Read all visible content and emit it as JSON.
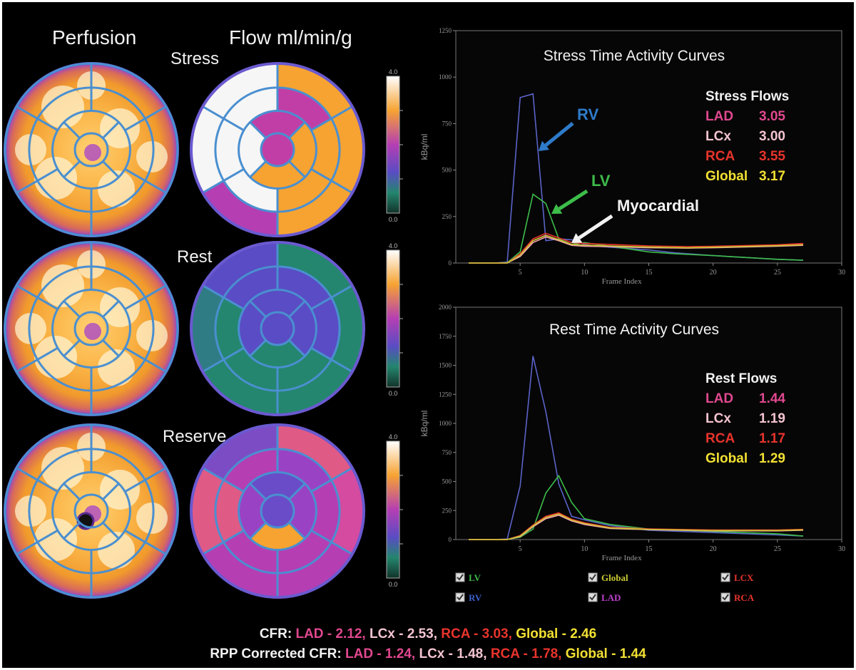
{
  "headers": {
    "perfusion": "Perfusion",
    "flow": "Flow ml/min/g"
  },
  "rows": [
    {
      "label": "Stress",
      "perfusion_defect": false,
      "scale": {
        "max": "4.0",
        "min": "0.0"
      },
      "flow_segments": {
        "ring1": [
          "#f6a332",
          "#f6a332",
          "#f6a332",
          "#b53eb3",
          "#f6f6f6",
          "#f6f6f6"
        ],
        "ring2": [
          "#c13ea6",
          "#f6a332",
          "#f6a332",
          "#f6f6f6",
          "#f6f6f6",
          "#f6f6f6"
        ],
        "ring3": [
          "#c13ea6",
          "#f6a332",
          "#f6a332",
          "#f6f6f6"
        ],
        "apex": "#c13ea6"
      }
    },
    {
      "label": "Rest",
      "perfusion_defect": false,
      "scale": {
        "max": "4.0",
        "min": "0.0"
      },
      "flow_segments": {
        "ring1": [
          "#24866e",
          "#24866e",
          "#24866e",
          "#24866e",
          "#2f7c84",
          "#5a4cc4"
        ],
        "ring2": [
          "#5a4cc4",
          "#5a4cc4",
          "#24866e",
          "#24866e",
          "#24866e",
          "#5a4cc4"
        ],
        "ring3": [
          "#5a4cc4",
          "#5a4cc4",
          "#24866e",
          "#5a4cc4"
        ],
        "apex": "#5a4cc4"
      }
    },
    {
      "label": "Reserve",
      "perfusion_defect": true,
      "scale": {
        "max": "4.0",
        "min": "0.0"
      },
      "flow_segments": {
        "ring1": [
          "#e05a86",
          "#d44ba0",
          "#b53eb3",
          "#b53eb3",
          "#e05a86",
          "#7c4cc4"
        ],
        "ring2": [
          "#9a42c4",
          "#b53eb3",
          "#b53eb3",
          "#b53eb3",
          "#e05a86",
          "#b53eb3"
        ],
        "ring3": [
          "#6a4cc8",
          "#9a42c4",
          "#f6a332",
          "#9a42c4"
        ],
        "apex": "#6a4cc8"
      }
    }
  ],
  "chart_data": [
    {
      "type": "line",
      "title": "Stress Time Activity Curves",
      "xlabel": "Frame Index",
      "ylabel": "kBq/ml",
      "xlim": [
        0,
        30
      ],
      "ylim": [
        0,
        1250
      ],
      "xticks": [
        5,
        10,
        15,
        20,
        25,
        30
      ],
      "yticks": [
        0,
        250,
        500,
        750,
        1000,
        1250
      ],
      "series": [
        {
          "name": "RV",
          "color": "#5b63c8",
          "x": [
            1,
            2,
            3,
            4,
            5,
            6,
            7,
            8,
            9,
            10,
            11,
            12,
            13,
            15,
            17,
            20,
            25,
            27
          ],
          "y": [
            0,
            0,
            0,
            5,
            890,
            910,
            120,
            130,
            125,
            100,
            90,
            85,
            80,
            70,
            55,
            40,
            20,
            15
          ]
        },
        {
          "name": "LV",
          "color": "#3dbd4a",
          "x": [
            1,
            2,
            3,
            4,
            5,
            6,
            7,
            8,
            9,
            10,
            11,
            12,
            13,
            15,
            17,
            20,
            25,
            27
          ],
          "y": [
            0,
            0,
            0,
            2,
            60,
            370,
            320,
            130,
            100,
            110,
            100,
            90,
            80,
            60,
            50,
            40,
            20,
            15
          ]
        },
        {
          "name": "LAD",
          "color": "#e0488f",
          "x": [
            1,
            2,
            3,
            4,
            5,
            6,
            7,
            8,
            9,
            10,
            12,
            15,
            18,
            20,
            25,
            27
          ],
          "y": [
            0,
            0,
            0,
            0,
            40,
            120,
            150,
            125,
            100,
            95,
            90,
            85,
            80,
            85,
            95,
            100
          ]
        },
        {
          "name": "LCX",
          "color": "#f4a0b0",
          "x": [
            1,
            2,
            3,
            4,
            5,
            6,
            7,
            8,
            9,
            10,
            12,
            15,
            18,
            20,
            25,
            27
          ],
          "y": [
            0,
            0,
            0,
            0,
            35,
            110,
            140,
            120,
            95,
            90,
            88,
            82,
            80,
            82,
            90,
            95
          ]
        },
        {
          "name": "RCA",
          "color": "#e8342c",
          "x": [
            1,
            2,
            3,
            4,
            5,
            6,
            7,
            8,
            9,
            10,
            12,
            15,
            18,
            20,
            25,
            27
          ],
          "y": [
            0,
            0,
            0,
            0,
            50,
            130,
            160,
            135,
            110,
            105,
            100,
            92,
            88,
            90,
            98,
            105
          ]
        },
        {
          "name": "Global",
          "color": "#c8c832",
          "x": [
            1,
            2,
            3,
            4,
            5,
            6,
            7,
            8,
            9,
            10,
            12,
            15,
            18,
            20,
            25,
            27
          ],
          "y": [
            0,
            0,
            0,
            0,
            42,
            120,
            148,
            125,
            100,
            96,
            92,
            86,
            82,
            85,
            93,
            98
          ]
        }
      ],
      "annotations": [
        {
          "text": "RV",
          "color": "#2e7bc9"
        },
        {
          "text": "LV",
          "color": "#3dbd4a"
        },
        {
          "text": "Myocardial",
          "color": "#f2f2f2"
        }
      ],
      "flows": {
        "title": "Stress Flows",
        "rows": [
          {
            "name": "LAD",
            "value": "3.05",
            "color": "#e0488f"
          },
          {
            "name": "LCx",
            "value": "3.00",
            "color": "#f4c4d0"
          },
          {
            "name": "RCA",
            "value": "3.55",
            "color": "#e8342c"
          },
          {
            "name": "Global",
            "value": "3.17",
            "color": "#f2e033"
          }
        ]
      }
    },
    {
      "type": "line",
      "title": "Rest Time Activity Curves",
      "xlabel": "Frame Index",
      "ylabel": "kBq/ml",
      "xlim": [
        0,
        30
      ],
      "ylim": [
        0,
        2000
      ],
      "xticks": [
        5,
        10,
        15,
        20,
        25,
        30
      ],
      "yticks": [
        0,
        250,
        500,
        750,
        1000,
        1250,
        1500,
        1750,
        2000
      ],
      "series": [
        {
          "name": "RV",
          "color": "#5b63c8",
          "x": [
            1,
            2,
            3,
            4,
            5,
            6,
            7,
            8,
            9,
            10,
            12,
            15,
            20,
            25,
            27
          ],
          "y": [
            0,
            0,
            0,
            5,
            460,
            1580,
            1100,
            480,
            200,
            170,
            120,
            80,
            60,
            40,
            30
          ]
        },
        {
          "name": "LV",
          "color": "#3dbd4a",
          "x": [
            1,
            2,
            3,
            4,
            5,
            6,
            7,
            8,
            9,
            10,
            12,
            15,
            20,
            25,
            27
          ],
          "y": [
            0,
            0,
            0,
            2,
            20,
            90,
            400,
            550,
            320,
            180,
            130,
            90,
            70,
            50,
            30
          ]
        },
        {
          "name": "LAD",
          "color": "#e0488f",
          "x": [
            1,
            2,
            3,
            4,
            5,
            6,
            7,
            8,
            9,
            10,
            12,
            15,
            20,
            25,
            27
          ],
          "y": [
            0,
            0,
            0,
            0,
            30,
            120,
            190,
            220,
            170,
            140,
            100,
            90,
            80,
            80,
            85
          ]
        },
        {
          "name": "LCX",
          "color": "#f4a0b0",
          "x": [
            1,
            2,
            3,
            4,
            5,
            6,
            7,
            8,
            9,
            10,
            12,
            15,
            20,
            25,
            27
          ],
          "y": [
            0,
            0,
            0,
            0,
            25,
            110,
            180,
            210,
            160,
            130,
            95,
            85,
            75,
            75,
            80
          ]
        },
        {
          "name": "RCA",
          "color": "#e8342c",
          "x": [
            1,
            2,
            3,
            4,
            5,
            6,
            7,
            8,
            9,
            10,
            12,
            15,
            20,
            25,
            27
          ],
          "y": [
            0,
            0,
            0,
            0,
            35,
            125,
            200,
            230,
            175,
            145,
            105,
            92,
            82,
            82,
            88
          ]
        },
        {
          "name": "Global",
          "color": "#c8c832",
          "x": [
            1,
            2,
            3,
            4,
            5,
            6,
            7,
            8,
            9,
            10,
            12,
            15,
            20,
            25,
            27
          ],
          "y": [
            0,
            0,
            0,
            0,
            30,
            118,
            190,
            220,
            168,
            138,
            100,
            88,
            78,
            78,
            84
          ]
        }
      ],
      "flows": {
        "title": "Rest Flows",
        "rows": [
          {
            "name": "LAD",
            "value": "1.44",
            "color": "#e0488f"
          },
          {
            "name": "LCx",
            "value": "1.19",
            "color": "#f4c4d0"
          },
          {
            "name": "RCA",
            "value": "1.17",
            "color": "#e8342c"
          },
          {
            "name": "Global",
            "value": "1.29",
            "color": "#f2e033"
          }
        ]
      }
    }
  ],
  "legend": [
    {
      "name": "LV",
      "color": "#3dbd4a"
    },
    {
      "name": "Global",
      "color": "#c8c832"
    },
    {
      "name": "LCX",
      "color": "#e8342c"
    },
    {
      "name": "RV",
      "color": "#3a5fcd"
    },
    {
      "name": "LAD",
      "color": "#c040d0"
    },
    {
      "name": "RCA",
      "color": "#e8342c"
    }
  ],
  "footer": {
    "cfr": {
      "label": "CFR:",
      "lad": "LAD - 2.12,",
      "lcx": "LCx - 2.53,",
      "rca": "RCA - 3.03,",
      "global": "Global - 2.46"
    },
    "rpp": {
      "label": "RPP Corrected CFR:",
      "lad": "LAD - 1.24,",
      "lcx": "LCx - 1.48,",
      "rca": "RCA - 1.78,",
      "global": "Global - 1.44"
    },
    "colors": {
      "lad": "#e0488f",
      "lcx": "#f4c4d0",
      "rca": "#e8342c",
      "global": "#f2e033"
    }
  }
}
